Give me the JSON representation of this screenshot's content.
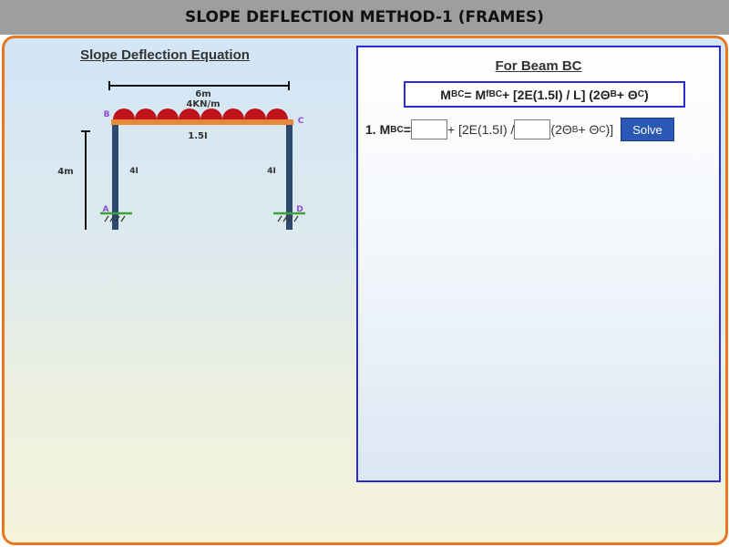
{
  "header": {
    "title": "SLOPE DEFLECTION METHOD-1 (FRAMES)"
  },
  "left": {
    "title": "Slope Deflection Equation",
    "diagram": {
      "span_label": "6m",
      "load_label": "4KN/m",
      "beam_label": "1.5I",
      "height_label": "4m",
      "left_column_label": "4I",
      "right_column_label": "4I",
      "nodes": {
        "A": "A",
        "B": "B",
        "C": "C",
        "D": "D"
      }
    }
  },
  "right": {
    "title": "For Beam BC",
    "equation": {
      "m": "M",
      "m_sub": "BC",
      "eq": " = M",
      "mf_sup": "f",
      "mf_sub": "BC",
      "mid": " + [2E(1.5I) / L] (2Θ",
      "theta_b_sub": "B",
      "plus": " + Θ",
      "theta_c_sub": "C",
      "end": ")"
    },
    "step1": {
      "prefix": "1. M",
      "sub": "BC",
      "eq": " =",
      "input1_value": "",
      "mid": "+ [2E(1.5I) /",
      "input2_value": "",
      "tail_a": "(2Θ",
      "tail_sub_b": "B",
      "tail_b": " + Θ",
      "tail_sub_c": "C",
      "tail_c": ")]",
      "solve_label": "Solve"
    }
  },
  "colors": {
    "header_bg": "#9e9e9e",
    "frame_border": "#e87722",
    "panel_border": "#2a2ad6",
    "column": "#2d4a6e",
    "beam": "#e8893a",
    "load": "#c0141c",
    "support": "#3fa33c",
    "node_label": "#8a4fd0",
    "button": "#2b58b5"
  }
}
